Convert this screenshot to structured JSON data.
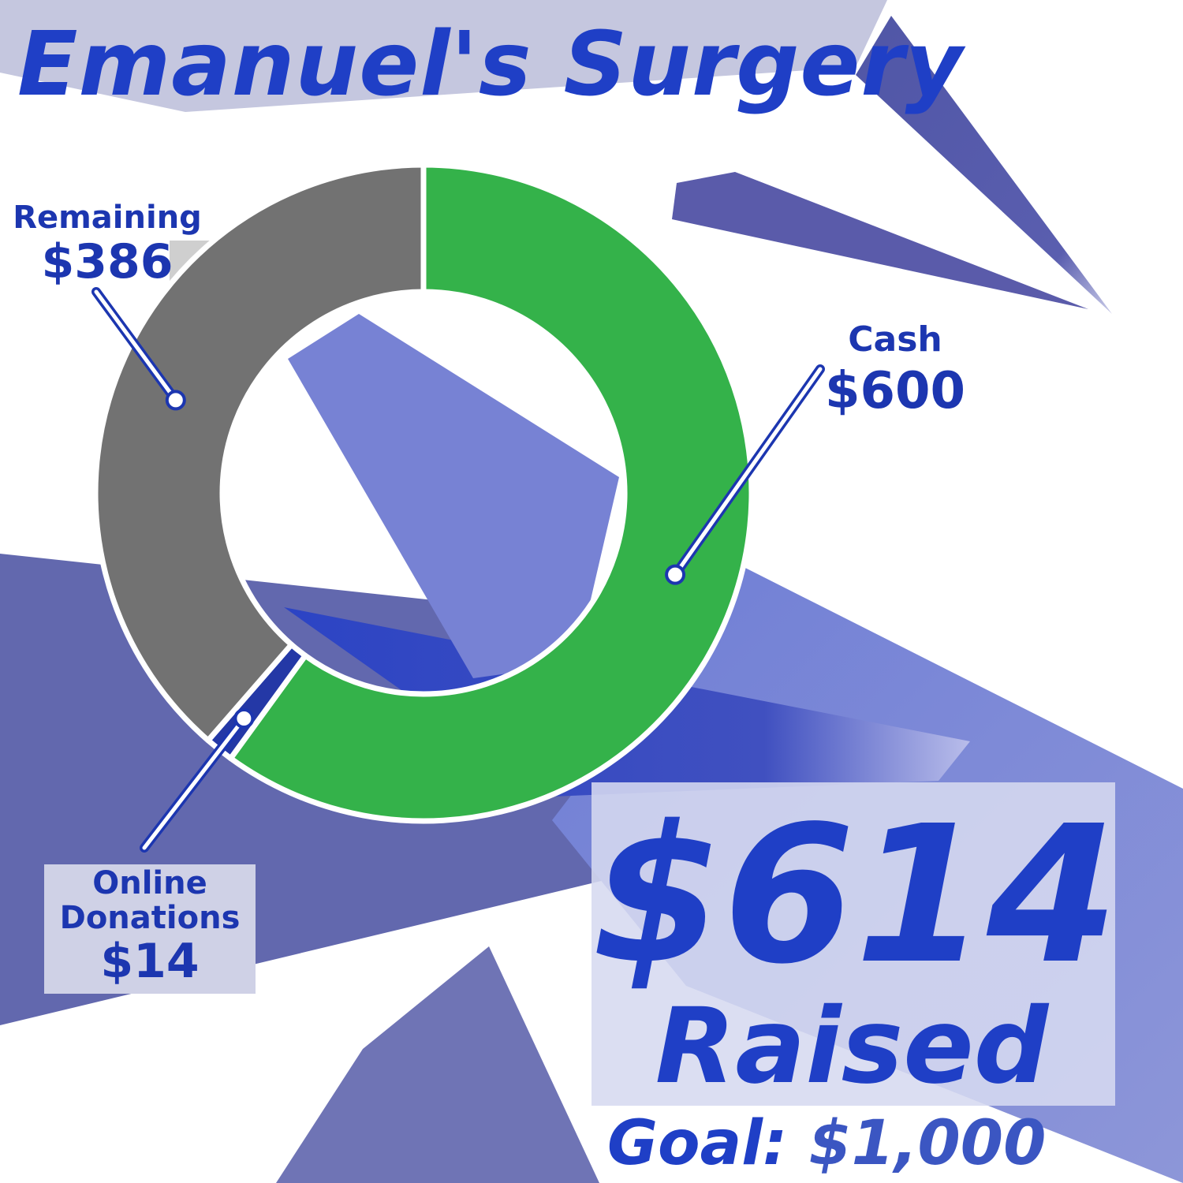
{
  "title": "Emanuel's Surgery",
  "chart_data": {
    "type": "pie",
    "variant": "donut",
    "slices": [
      {
        "label": "Cash",
        "value": 600,
        "display_value": "$600",
        "color": "#34b24a"
      },
      {
        "label": "Online Donations",
        "value": 14,
        "display_value": "$14",
        "color": "#2438a6"
      },
      {
        "label": "Remaining",
        "value": 386,
        "display_value": "$386",
        "color": "#727272"
      }
    ]
  },
  "summary": {
    "raised_amount": "$614",
    "raised_label": "Raised",
    "goal_label": "Goal:",
    "goal_value": "$1,000"
  },
  "colors": {
    "title": "#1f3fc6",
    "callout_text": "#1c36b0",
    "background_shapes": "#5b5fb1",
    "leader_line": "#1c36b0"
  }
}
